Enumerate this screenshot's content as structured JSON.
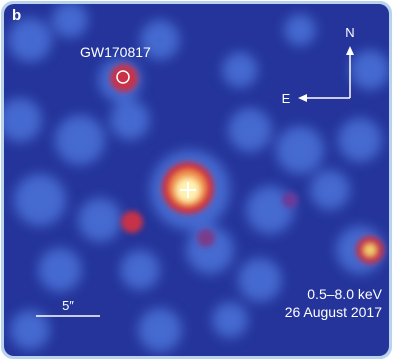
{
  "panel_label": "b",
  "labels": {
    "source": "GW170817",
    "north": "N",
    "east": "E",
    "scale": "5″",
    "energy": "0.5–8.0 keV",
    "date": "26 August 2017"
  }
}
